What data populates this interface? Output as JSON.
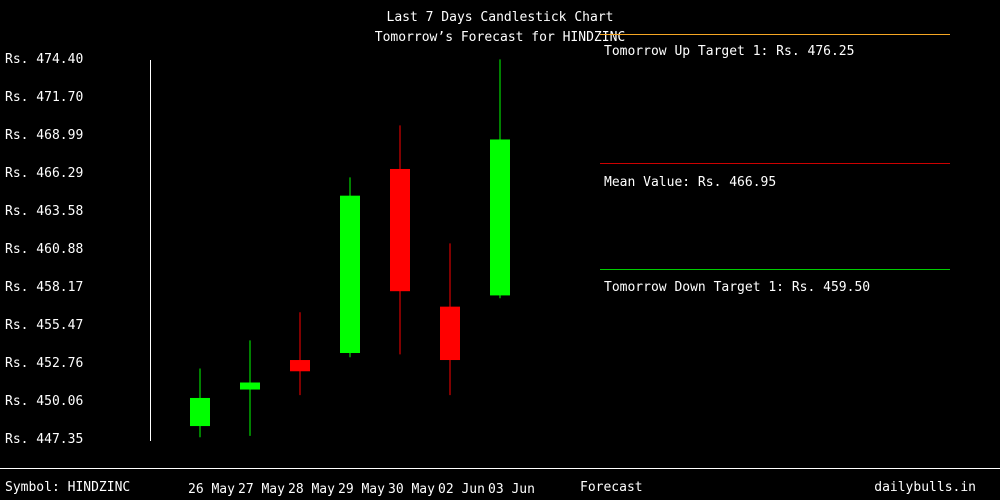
{
  "chart_data": {
    "type": "candlestick",
    "title": "Last 7 Days Candlestick Chart",
    "subtitle": "Tomorrow’s Forecast for HINDZINC",
    "y_tick_labels": [
      "Rs. 474.40",
      "Rs. 471.70",
      "Rs. 468.99",
      "Rs. 466.29",
      "Rs. 463.58",
      "Rs. 460.88",
      "Rs. 458.17",
      "Rs. 455.47",
      "Rs. 452.76",
      "Rs. 450.06",
      "Rs. 447.35"
    ],
    "y_ticks": [
      474.4,
      471.7,
      468.99,
      466.29,
      463.58,
      460.88,
      458.17,
      455.47,
      452.76,
      450.06,
      447.35
    ],
    "ylim": [
      447.35,
      474.4
    ],
    "categories": [
      "26 May",
      "27 May",
      "28 May",
      "29 May",
      "30 May",
      "02 Jun",
      "03 Jun"
    ],
    "candles": [
      {
        "date": "26 May",
        "open": 448.2,
        "close": 450.2,
        "high": 452.3,
        "low": 447.4,
        "direction": "up"
      },
      {
        "date": "27 May",
        "open": 450.8,
        "close": 451.3,
        "high": 454.3,
        "low": 447.5,
        "direction": "up"
      },
      {
        "date": "28 May",
        "open": 452.9,
        "close": 452.1,
        "high": 456.3,
        "low": 450.4,
        "direction": "down"
      },
      {
        "date": "29 May",
        "open": 453.4,
        "close": 464.6,
        "high": 465.9,
        "low": 453.1,
        "direction": "up"
      },
      {
        "date": "30 May",
        "open": 466.5,
        "close": 457.8,
        "high": 469.6,
        "low": 453.3,
        "direction": "down"
      },
      {
        "date": "02 Jun",
        "open": 456.7,
        "close": 452.9,
        "high": 461.2,
        "low": 450.4,
        "direction": "down"
      },
      {
        "date": "03 Jun",
        "open": 457.5,
        "close": 468.6,
        "high": 474.3,
        "low": 457.3,
        "direction": "up"
      }
    ],
    "forecast": {
      "label": "Forecast",
      "up_target": {
        "label": "Tomorrow Up Target 1: Rs. 476.25",
        "value": 476.25,
        "color": "#f5a623"
      },
      "mean": {
        "label": "Mean Value: Rs. 466.95",
        "value": 466.95,
        "color": "#cc0000"
      },
      "down_target": {
        "label": "Tomorrow Down Target 1: Rs. 459.50",
        "value": 459.5,
        "color": "#00cc00"
      }
    },
    "colors": {
      "up": "#00ff00",
      "down": "#ff0000",
      "axis": "#ffffff"
    }
  },
  "footer": {
    "symbol": "Symbol: HINDZINC",
    "brand": "dailybulls.in"
  }
}
